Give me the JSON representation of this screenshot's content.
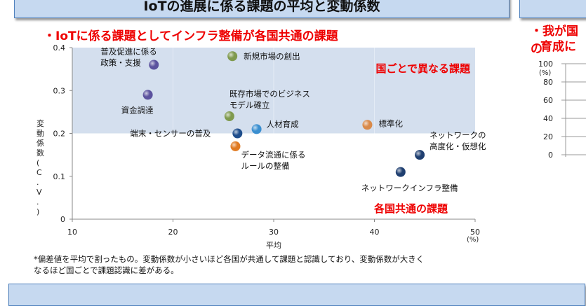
{
  "header": {
    "title": "IoTの進展に係る課題の平均と変動係数"
  },
  "subtitle": "・IoTに係る課題としてインフラ整備が各国共通の課題",
  "right_panel": {
    "subtitle_line1": "・我が国の",
    "subtitle_line2": "育成に",
    "y_ticks": [
      "100",
      "80",
      "60",
      "40",
      "20",
      "0"
    ],
    "y_unit": "(%)"
  },
  "chart_data": {
    "type": "scatter",
    "xlabel": "平均",
    "x_unit": "(%)",
    "ylabel": "変動係数(C.V.)",
    "xlim": [
      10,
      50
    ],
    "ylim": [
      0,
      0.4
    ],
    "x_ticks": [
      "10",
      "20",
      "30",
      "40",
      "50"
    ],
    "y_ticks": [
      "0",
      "0.1",
      "0.2",
      "0.3",
      "0.4"
    ],
    "regions": [
      {
        "label": "国ごとで異なる課題",
        "y_range": [
          0.2,
          0.4
        ]
      },
      {
        "label": "各国共通の課題",
        "y_range": [
          0,
          0.2
        ]
      }
    ],
    "points": [
      {
        "label": "普及促進に係る\n政策・支援",
        "x": 18.1,
        "y": 0.36,
        "color": "#5b529e"
      },
      {
        "label": "資金調達",
        "x": 17.5,
        "y": 0.29,
        "color": "#5b529e"
      },
      {
        "label": "新規市場の創出",
        "x": 25.9,
        "y": 0.38,
        "color": "#7f9a4e"
      },
      {
        "label": "既存市場でのビジネス\nモデル確立",
        "x": 25.6,
        "y": 0.24,
        "color": "#7f9a4e"
      },
      {
        "label": "端末・センサーの普及",
        "x": 26.4,
        "y": 0.2,
        "color": "#1f4e8c"
      },
      {
        "label": "人材育成",
        "x": 28.3,
        "y": 0.21,
        "color": "#3b8fd0"
      },
      {
        "label": "データ流通に係る\nルールの整備",
        "x": 26.2,
        "y": 0.17,
        "color": "#e07a22"
      },
      {
        "label": "標準化",
        "x": 39.3,
        "y": 0.22,
        "color": "#d98a4a"
      },
      {
        "label": "ネットワークの\n高度化・仮想化",
        "x": 44.5,
        "y": 0.15,
        "color": "#1f3f70"
      },
      {
        "label": "ネットワークインフラ整備",
        "x": 42.6,
        "y": 0.11,
        "color": "#1f3f70"
      }
    ]
  },
  "footnote_line1": "*偏差値を平均で割ったもの。変動係数が小さいほど各国が共通して課題と認識しており、変動係数が大きく",
  "footnote_line2": "なるほど国ごとで課題認識に差がある。"
}
